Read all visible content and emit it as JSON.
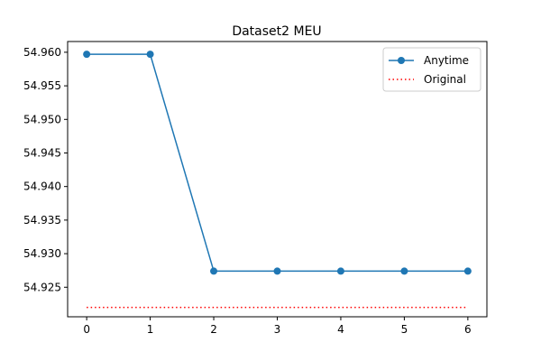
{
  "chart_data": {
    "type": "line",
    "title": "Dataset2 MEU",
    "xlabel": "",
    "ylabel": "",
    "x": [
      0,
      1,
      2,
      3,
      4,
      5,
      6
    ],
    "xlim": [
      -0.3,
      6.3
    ],
    "ylim": [
      54.9206,
      54.9616
    ],
    "xticks": [
      0,
      1,
      2,
      3,
      4,
      5,
      6
    ],
    "xtick_labels": [
      "0",
      "1",
      "2",
      "3",
      "4",
      "5",
      "6"
    ],
    "yticks": [
      54.925,
      54.93,
      54.935,
      54.94,
      54.945,
      54.95,
      54.955,
      54.96
    ],
    "ytick_labels": [
      "54.925",
      "54.930",
      "54.935",
      "54.940",
      "54.945",
      "54.950",
      "54.955",
      "54.960"
    ],
    "grid": false,
    "legend_position": "top-right",
    "series": [
      {
        "name": "Anytime",
        "style": "solid-line-with-circle-markers",
        "color": "#1f77b4",
        "values": [
          54.9597,
          54.9597,
          54.9274,
          54.9274,
          54.9274,
          54.9274,
          54.9274
        ]
      },
      {
        "name": "Original",
        "style": "dotted-line",
        "color": "#ff0000",
        "values": [
          54.922,
          54.922,
          54.922,
          54.922,
          54.922,
          54.922,
          54.922
        ]
      }
    ]
  }
}
